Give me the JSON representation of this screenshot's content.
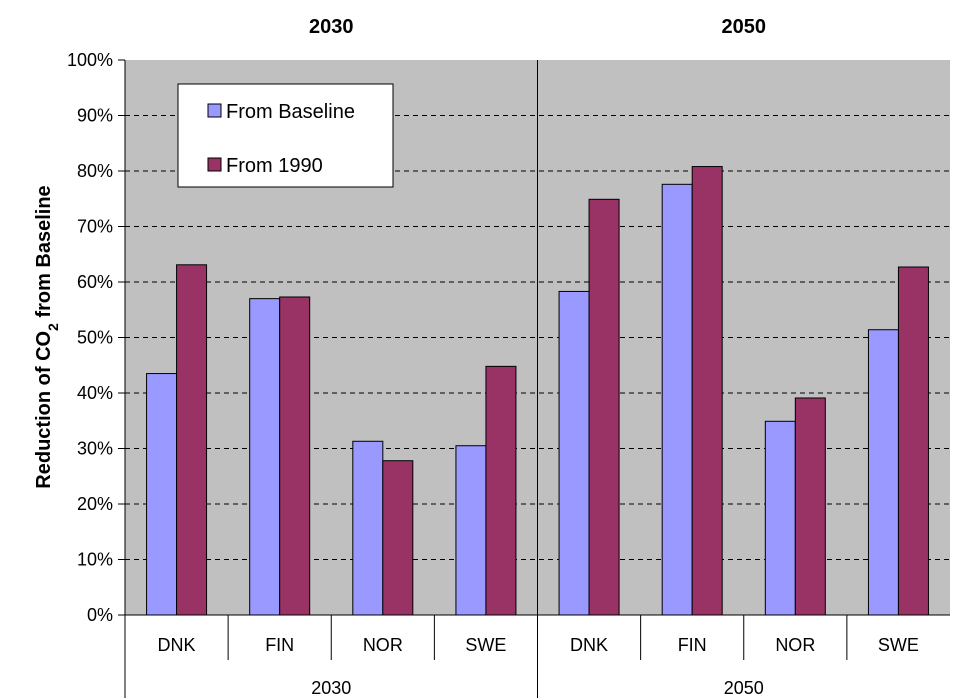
{
  "chart_data": {
    "type": "bar",
    "groups": [
      "2030",
      "2050"
    ],
    "categories": [
      "DNK",
      "FIN",
      "NOR",
      "SWE"
    ],
    "series": [
      {
        "name": "From Baseline",
        "color": "#9999ff",
        "values": {
          "2030": [
            43.5,
            57,
            31.3,
            30.5
          ],
          "2050": [
            58.3,
            77.6,
            34.9,
            51.4
          ]
        }
      },
      {
        "name": "From 1990",
        "color": "#993366",
        "values": {
          "2030": [
            63.1,
            57.3,
            27.8,
            44.8
          ],
          "2050": [
            74.9,
            80.8,
            39.1,
            62.7
          ]
        }
      }
    ],
    "ylabel_main": "Reduction of CO",
    "ylabel_sub": "2",
    "ylabel_tail": " from Baseline",
    "ylim": [
      0,
      100
    ],
    "yticks": [
      "0%",
      "10%",
      "20%",
      "30%",
      "40%",
      "50%",
      "60%",
      "70%",
      "80%",
      "90%",
      "100%"
    ],
    "plot_background": "#c0c0c0",
    "grid": "dashed",
    "legend_position": "top-left"
  }
}
